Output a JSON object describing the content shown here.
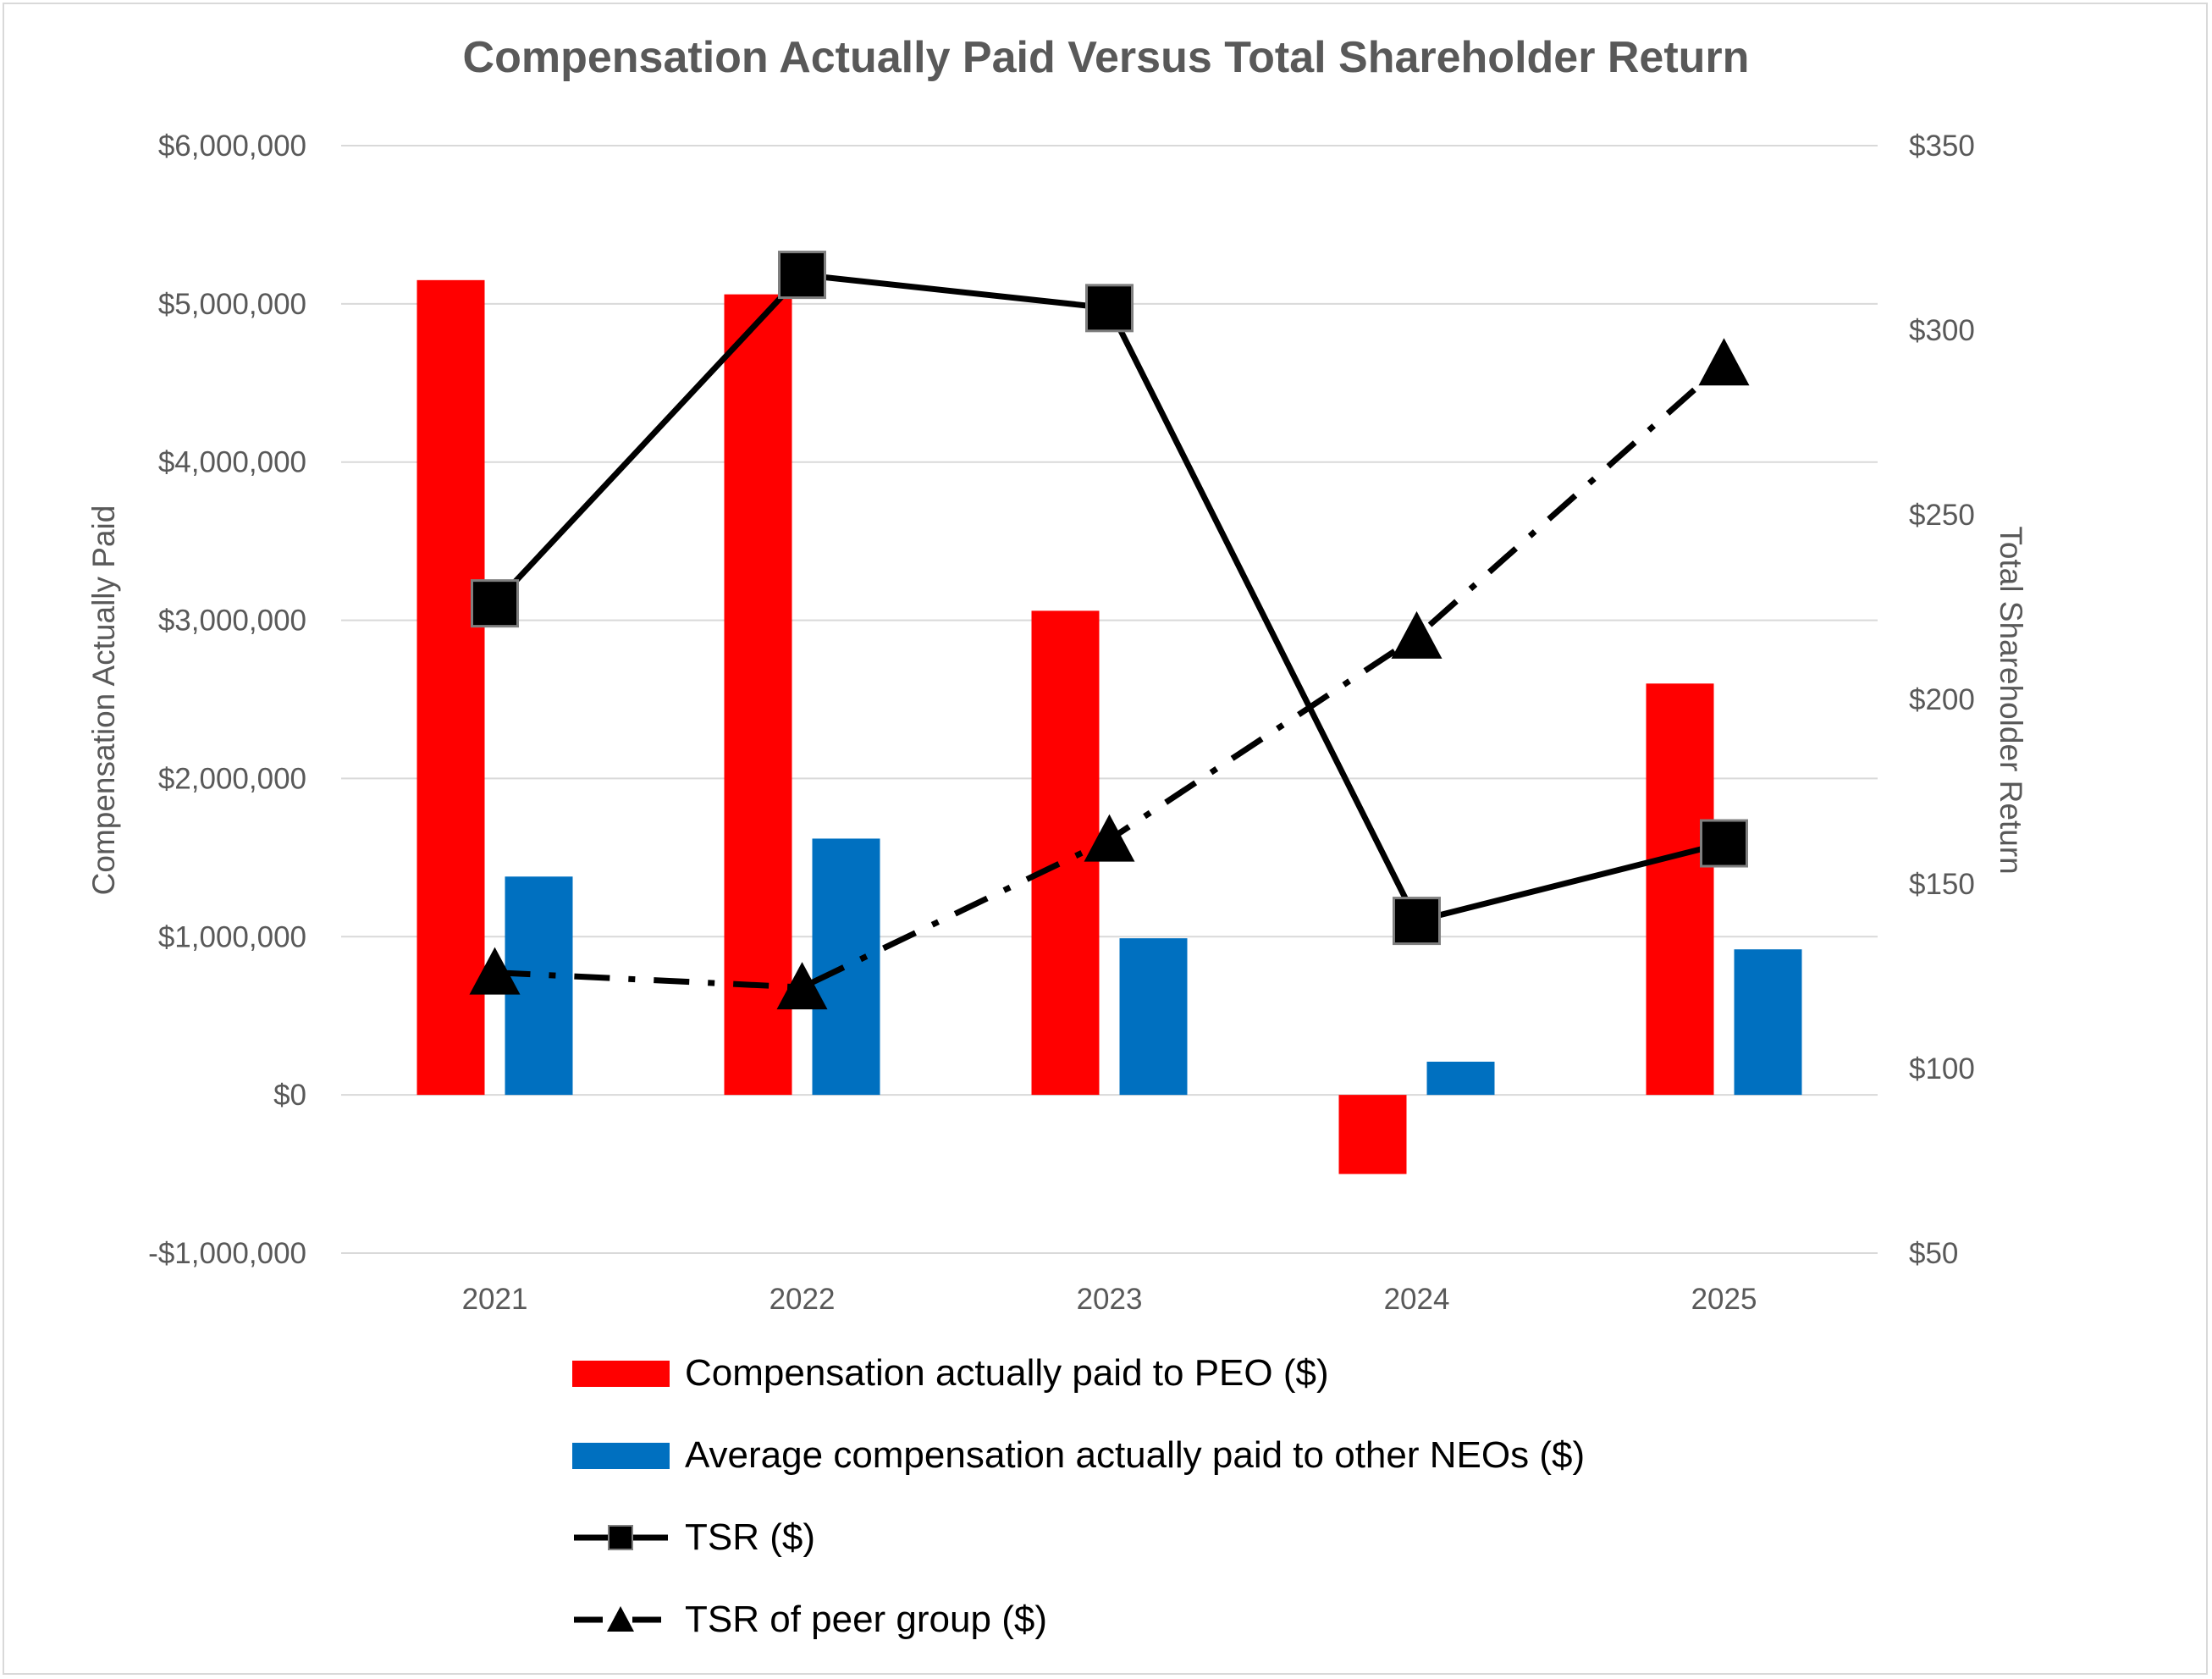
{
  "chart_data": {
    "type": "bar",
    "title": "Compensation Actually Paid Versus Total Shareholder Return",
    "categories": [
      "2021",
      "2022",
      "2023",
      "2024",
      "2025"
    ],
    "y_left": {
      "label": "Compensation Actually Paid",
      "range": [
        -1000000,
        6000000
      ],
      "ticks": [
        "$6,000,000",
        "$5,000,000",
        "$4,000,000",
        "$3,000,000",
        "$2,000,000",
        "$1,000,000",
        "$0",
        "-$1,000,000"
      ],
      "tick_values": [
        6000000,
        5000000,
        4000000,
        3000000,
        2000000,
        1000000,
        0,
        -1000000
      ]
    },
    "y_right": {
      "label": "Total Shareholder Return",
      "range": [
        50,
        350
      ],
      "ticks": [
        "$350",
        "$300",
        "$250",
        "$200",
        "$150",
        "$100",
        "$50"
      ],
      "tick_values": [
        350,
        300,
        250,
        200,
        150,
        100,
        50
      ]
    },
    "grid": true,
    "legend_position": "bottom",
    "series": [
      {
        "name": "Compensation actually paid to PEO ($)",
        "kind": "bar",
        "axis": "left",
        "color": "#ff0000",
        "values": [
          5150000,
          5060000,
          3060000,
          -500000,
          2600000
        ]
      },
      {
        "name": "Average compensation actually paid to other NEOs ($)",
        "kind": "bar",
        "axis": "left",
        "color": "#0070c0",
        "values": [
          1380000,
          1620000,
          990000,
          210000,
          920000
        ]
      },
      {
        "name": "TSR ($)",
        "kind": "line",
        "style": "solid",
        "marker": "square",
        "axis": "right",
        "color": "#000000",
        "values": [
          226,
          315,
          306,
          140,
          161
        ]
      },
      {
        "name": "TSR of peer group ($)",
        "kind": "line",
        "style": "dash-dot",
        "marker": "triangle",
        "axis": "right",
        "color": "#000000",
        "values": [
          126,
          122,
          162,
          217,
          291
        ]
      }
    ]
  }
}
